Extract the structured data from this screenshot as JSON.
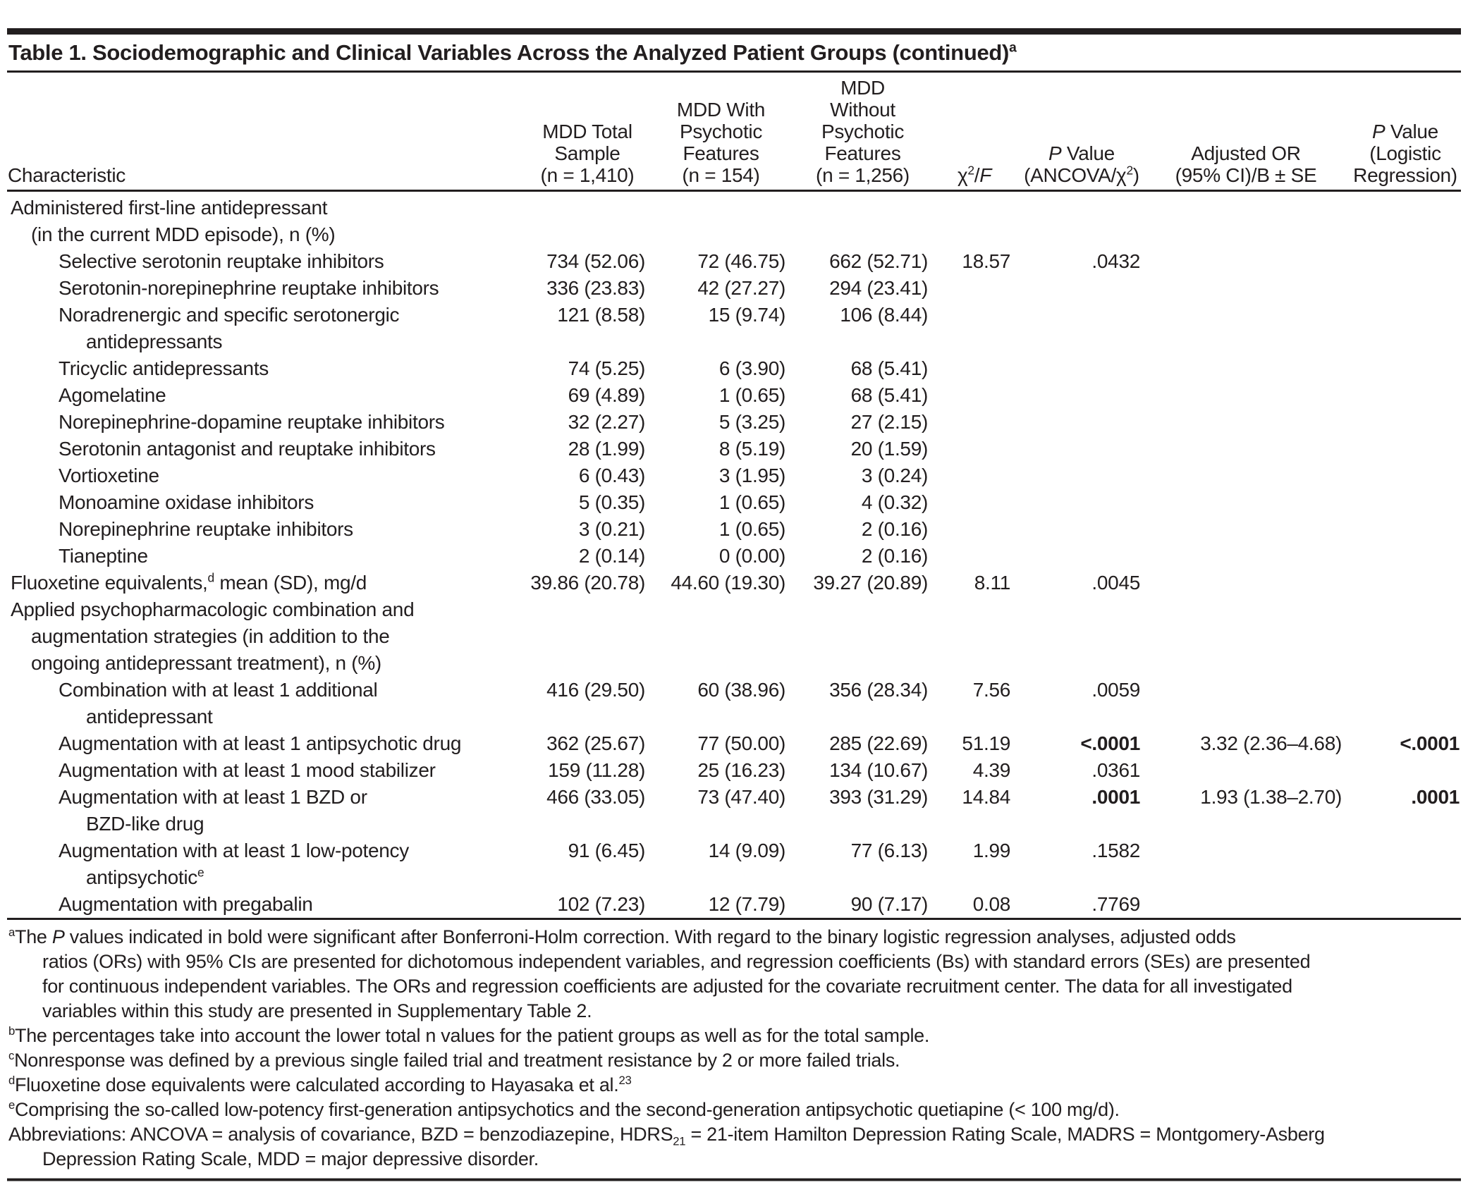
{
  "ink_color": "#221e1f",
  "title": "Table 1. Sociodemographic and Clinical Variables Across the Analyzed Patient Groups (continued)^a^",
  "table": {
    "columns": [
      {
        "id": "characteristic",
        "lines": [
          "Characteristic"
        ]
      },
      {
        "id": "mdd-total-sample",
        "lines": [
          "MDD Total",
          "Sample",
          "(n = 1,410)"
        ]
      },
      {
        "id": "mdd-with-psychotic-features",
        "lines": [
          "MDD With",
          "Psychotic",
          "Features",
          "(n = 154)"
        ]
      },
      {
        "id": "mdd-without-psychotic-features",
        "lines": [
          "MDD",
          "Without",
          "Psychotic",
          "Features",
          "(n = 1,256)"
        ]
      },
      {
        "id": "chi-square-f",
        "lines": [
          "χ^2^/*F*"
        ]
      },
      {
        "id": "p-value-ancova",
        "lines": [
          "*P* Value",
          "(ANCOVA/χ^2^)"
        ]
      },
      {
        "id": "adjusted-or",
        "lines": [
          "Adjusted OR",
          "(95% CI)/B ± SE"
        ]
      },
      {
        "id": "p-value-logistic",
        "lines": [
          "*P* Value",
          "(Logistic",
          "Regression)"
        ]
      }
    ],
    "rows": [
      {
        "label": [
          [
            "Administered first-line antidepressant",
            0
          ],
          [
            "(in the current MDD episode), n (%)",
            1
          ]
        ],
        "values": [
          "",
          "",
          "",
          "",
          "",
          "",
          ""
        ]
      },
      {
        "label": [
          [
            "Selective serotonin reuptake inhibitors",
            2
          ]
        ],
        "values": [
          "734 (52.06)",
          "72 (46.75)",
          "662 (52.71)",
          "18.57",
          ".0432",
          "",
          ""
        ]
      },
      {
        "label": [
          [
            "Serotonin-norepinephrine reuptake inhibitors",
            2
          ]
        ],
        "values": [
          "336 (23.83)",
          "42 (27.27)",
          "294 (23.41)",
          "",
          "",
          "",
          ""
        ]
      },
      {
        "label": [
          [
            "Noradrenergic and specific serotonergic",
            2
          ],
          [
            "antidepressants",
            3
          ]
        ],
        "values": [
          "121 (8.58)",
          "15 (9.74)",
          "106 (8.44)",
          "",
          "",
          "",
          ""
        ]
      },
      {
        "label": [
          [
            "Tricyclic antidepressants",
            2
          ]
        ],
        "values": [
          "74 (5.25)",
          "6 (3.90)",
          "68 (5.41)",
          "",
          "",
          "",
          ""
        ]
      },
      {
        "label": [
          [
            "Agomelatine",
            2
          ]
        ],
        "values": [
          "69 (4.89)",
          "1 (0.65)",
          "68 (5.41)",
          "",
          "",
          "",
          ""
        ]
      },
      {
        "label": [
          [
            "Norepinephrine-dopamine reuptake inhibitors",
            2
          ]
        ],
        "values": [
          "32 (2.27)",
          "5 (3.25)",
          "27 (2.15)",
          "",
          "",
          "",
          ""
        ]
      },
      {
        "label": [
          [
            "Serotonin antagonist and reuptake inhibitors",
            2
          ]
        ],
        "values": [
          "28 (1.99)",
          "8 (5.19)",
          "20 (1.59)",
          "",
          "",
          "",
          ""
        ]
      },
      {
        "label": [
          [
            "Vortioxetine",
            2
          ]
        ],
        "values": [
          "6 (0.43)",
          "3 (1.95)",
          "3 (0.24)",
          "",
          "",
          "",
          ""
        ]
      },
      {
        "label": [
          [
            "Monoamine oxidase inhibitors",
            2
          ]
        ],
        "values": [
          "5 (0.35)",
          "1 (0.65)",
          "4 (0.32)",
          "",
          "",
          "",
          ""
        ]
      },
      {
        "label": [
          [
            "Norepinephrine reuptake inhibitors",
            2
          ]
        ],
        "values": [
          "3 (0.21)",
          "1 (0.65)",
          "2 (0.16)",
          "",
          "",
          "",
          ""
        ]
      },
      {
        "label": [
          [
            "Tianeptine",
            2
          ]
        ],
        "values": [
          "2 (0.14)",
          "0 (0.00)",
          "2 (0.16)",
          "",
          "",
          "",
          ""
        ]
      },
      {
        "label": [
          [
            "Fluoxetine equivalents,^d^ mean (SD), mg/d",
            0
          ]
        ],
        "values": [
          "39.86 (20.78)",
          "44.60 (19.30)",
          "39.27 (20.89)",
          "8.11",
          ".0045",
          "",
          ""
        ]
      },
      {
        "label": [
          [
            "Applied psychopharmacologic combination and",
            0
          ],
          [
            "augmentation strategies (in addition to the",
            1
          ],
          [
            "ongoing antidepressant treatment), n (%)",
            1
          ]
        ],
        "values": [
          "",
          "",
          "",
          "",
          "",
          "",
          ""
        ]
      },
      {
        "label": [
          [
            "Combination with at least 1 additional",
            2
          ],
          [
            "antidepressant",
            3
          ]
        ],
        "values": [
          "416 (29.50)",
          "60 (38.96)",
          "356 (28.34)",
          "7.56",
          ".0059",
          "",
          ""
        ]
      },
      {
        "label": [
          [
            "Augmentation with at least 1 antipsychotic drug",
            2
          ]
        ],
        "values": [
          "362 (25.67)",
          "77 (50.00)",
          "285 (22.69)",
          "51.19",
          "**<.0001**",
          "3.32 (2.36–4.68)",
          "**<.0001**"
        ]
      },
      {
        "label": [
          [
            "Augmentation with at least 1 mood stabilizer",
            2
          ]
        ],
        "values": [
          "159 (11.28)",
          "25 (16.23)",
          "134 (10.67)",
          "4.39",
          ".0361",
          "",
          ""
        ]
      },
      {
        "label": [
          [
            "Augmentation with at least 1 BZD or",
            2
          ],
          [
            "BZD-like drug",
            3
          ]
        ],
        "values": [
          "466 (33.05)",
          "73 (47.40)",
          "393 (31.29)",
          "14.84",
          "**.0001**",
          "1.93 (1.38–2.70)",
          "**.0001**"
        ]
      },
      {
        "label": [
          [
            "Augmentation with at least 1 low-potency",
            2
          ],
          [
            "antipsychotic^e^",
            3
          ]
        ],
        "values": [
          "91 (6.45)",
          "14 (9.09)",
          "77 (6.13)",
          "1.99",
          ".1582",
          "",
          ""
        ]
      },
      {
        "label": [
          [
            "Augmentation with pregabalin",
            2
          ]
        ],
        "values": [
          "102 (7.23)",
          "12 (7.79)",
          "90 (7.17)",
          "0.08",
          ".7769",
          "",
          ""
        ]
      }
    ]
  },
  "footnotes": [
    {
      "id": "a",
      "lines": [
        "^a^The *P* values indicated in bold were significant after Bonferroni-Holm correction. With regard to the binary logistic regression analyses, adjusted odds",
        "ratios (ORs) with 95% CIs are presented for dichotomous independent variables, and regression coefficients (Bs) with standard errors (SEs) are presented",
        "for continuous independent variables. The ORs and regression coefficients are adjusted for the covariate recruitment center. The data for all investigated",
        "variables within this study are presented in Supplementary Table 2."
      ]
    },
    {
      "id": "b",
      "lines": [
        "^b^The percentages take into account the lower total n values for the patient groups as well as for the total sample."
      ]
    },
    {
      "id": "c",
      "lines": [
        "^c^Nonresponse was defined by a previous single failed trial and treatment resistance by 2 or more failed trials."
      ]
    },
    {
      "id": "d",
      "lines": [
        "^d^Fluoxetine dose equivalents were calculated according to Hayasaka et al.^23^"
      ]
    },
    {
      "id": "e",
      "lines": [
        "^e^Comprising the so-called low-potency first-generation antipsychotics and the second-generation antipsychotic quetiapine (< 100 mg/d)."
      ]
    },
    {
      "id": "abbreviations",
      "lines": [
        "Abbreviations: ANCOVA = analysis of covariance, BZD = benzodiazepine, HDRS~21~ = 21-item Hamilton Depression Rating Scale, MADRS = Montgomery-Asberg",
        "Depression Rating Scale, MDD = major depressive disorder."
      ]
    }
  ]
}
